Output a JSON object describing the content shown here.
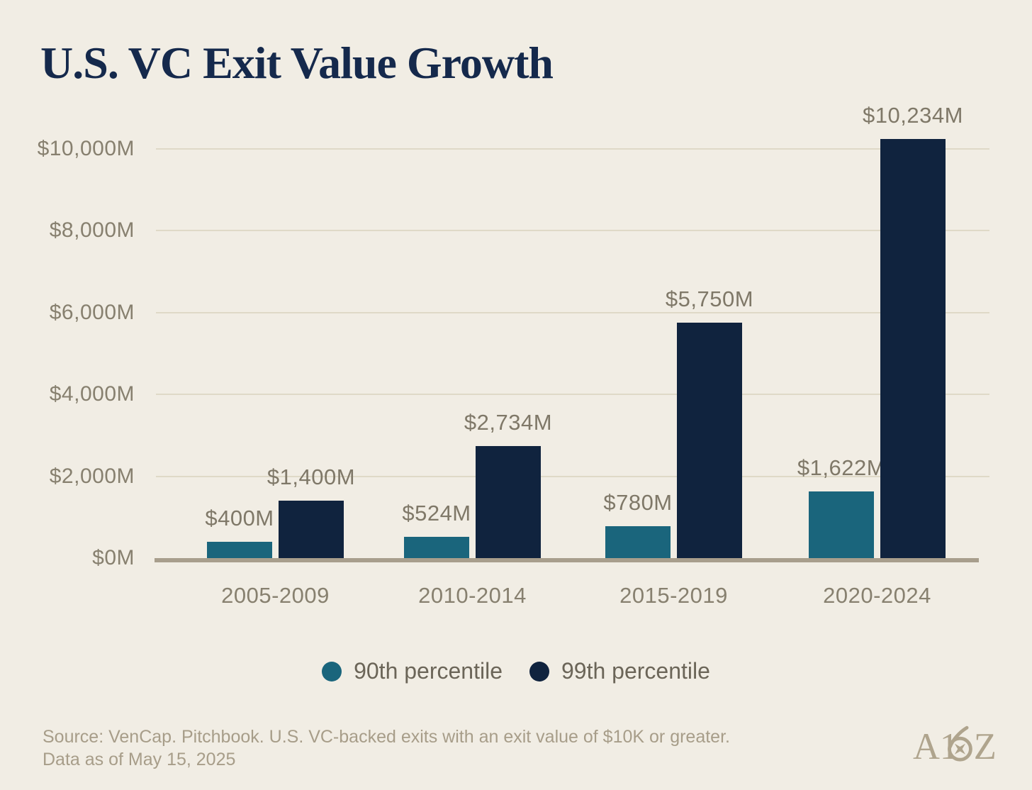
{
  "title": "U.S. VC Exit Value Growth",
  "chart_data": {
    "type": "bar",
    "categories": [
      "2005-2009",
      "2010-2014",
      "2015-2019",
      "2020-2024"
    ],
    "series": [
      {
        "name": "90th percentile",
        "color": "#1A657C",
        "values": [
          400,
          524,
          780,
          1622
        ],
        "labels": [
          "$400M",
          "$524M",
          "$780M",
          "$1,622M"
        ]
      },
      {
        "name": "99th percentile",
        "color": "#10233E",
        "values": [
          1400,
          2734,
          5750,
          10234
        ],
        "labels": [
          "$1,400M",
          "$2,734M",
          "$5,750M",
          "$10,234M"
        ]
      }
    ],
    "xlabel": "",
    "ylabel": "",
    "ylim": [
      0,
      10000
    ],
    "yticks": {
      "values": [
        0,
        2000,
        4000,
        6000,
        8000,
        10000
      ],
      "labels": [
        "$0M",
        "$2,000M",
        "$4,000M",
        "$6,000M",
        "$8,000M",
        "$10,000M"
      ]
    },
    "grid": true,
    "legend_position": "bottom"
  },
  "footer": {
    "source_line1": "Source: VenCap. Pitchbook. U.S. VC-backed exits with an exit value of $10K or greater.",
    "source_line2": "Data as of May 15, 2025"
  },
  "logo": {
    "text": "A16Z"
  },
  "colors": {
    "background": "#F1EDE4",
    "title": "#15294C",
    "teal": "#1A657C",
    "navy": "#10233E",
    "gridline": "#DFD9C7",
    "baseline": "#A89E8C",
    "axis_text": "#87806F",
    "value_text": "#7F7868",
    "legend_text": "#6B6558",
    "footer_text": "#A79D89",
    "logo": "#AFA48D"
  }
}
